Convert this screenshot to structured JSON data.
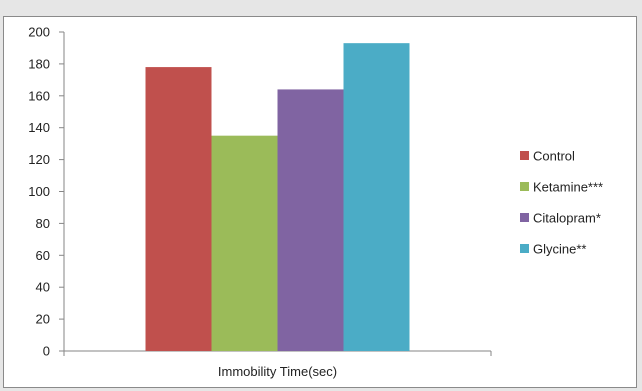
{
  "chart_data": {
    "type": "bar",
    "categories": [
      "Immobility Time(sec)"
    ],
    "series": [
      {
        "name": "Control",
        "values": [
          178
        ],
        "color": "#c0504d"
      },
      {
        "name": "Ketamine***",
        "values": [
          135
        ],
        "color": "#9bbb59"
      },
      {
        "name": "Citalopram*",
        "values": [
          164
        ],
        "color": "#8064a2"
      },
      {
        "name": "Glycine**",
        "values": [
          193
        ],
        "color": "#4bacc6"
      }
    ],
    "title": "",
    "xlabel": "",
    "ylabel": "",
    "ylim": [
      0,
      200
    ],
    "yticks": [
      0,
      20,
      40,
      60,
      80,
      100,
      120,
      140,
      160,
      180,
      200
    ],
    "grid": false,
    "legend_position": "right"
  }
}
